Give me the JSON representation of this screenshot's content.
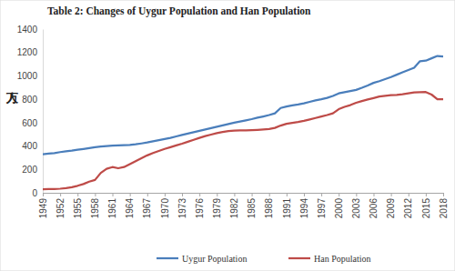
{
  "chart_data": {
    "type": "line",
    "title": "Table 2: Changes of Uygur Population and Han Population",
    "ylabel": "万人",
    "x": [
      1949,
      1950,
      1951,
      1952,
      1953,
      1954,
      1955,
      1956,
      1957,
      1958,
      1959,
      1960,
      1961,
      1962,
      1963,
      1964,
      1965,
      1966,
      1967,
      1968,
      1969,
      1970,
      1971,
      1972,
      1973,
      1974,
      1975,
      1976,
      1977,
      1978,
      1979,
      1980,
      1981,
      1982,
      1983,
      1984,
      1985,
      1986,
      1987,
      1988,
      1989,
      1990,
      1991,
      1992,
      1993,
      1994,
      1995,
      1996,
      1997,
      1998,
      1999,
      2000,
      2001,
      2002,
      2003,
      2004,
      2005,
      2006,
      2007,
      2008,
      2009,
      2010,
      2011,
      2012,
      2013,
      2014,
      2015,
      2016,
      2017,
      2018
    ],
    "series": [
      {
        "name": "Uygur Population",
        "color": "#4a7ebb",
        "values": [
          330,
          335,
          340,
          348,
          355,
          360,
          368,
          375,
          382,
          390,
          395,
          400,
          403,
          405,
          407,
          410,
          415,
          422,
          430,
          440,
          450,
          460,
          470,
          482,
          495,
          507,
          518,
          530,
          542,
          553,
          565,
          577,
          588,
          600,
          610,
          620,
          630,
          642,
          653,
          665,
          680,
          725,
          738,
          748,
          755,
          765,
          778,
          790,
          800,
          812,
          828,
          850,
          860,
          870,
          880,
          898,
          918,
          940,
          955,
          972,
          990,
          1010,
          1030,
          1050,
          1070,
          1125,
          1130,
          1150,
          1170,
          1165
        ]
      },
      {
        "name": "Han Population",
        "color": "#be4b48",
        "values": [
          30,
          32,
          33,
          35,
          40,
          48,
          60,
          75,
          95,
          110,
          170,
          205,
          220,
          210,
          220,
          245,
          270,
          295,
          320,
          340,
          358,
          375,
          390,
          405,
          420,
          437,
          453,
          470,
          485,
          498,
          510,
          520,
          528,
          532,
          533,
          534,
          536,
          538,
          541,
          545,
          555,
          575,
          590,
          598,
          605,
          615,
          627,
          640,
          652,
          665,
          680,
          715,
          735,
          750,
          770,
          785,
          798,
          810,
          823,
          830,
          835,
          838,
          843,
          850,
          858,
          860,
          862,
          840,
          800,
          800
        ]
      }
    ],
    "xlim": [
      1949,
      2018
    ],
    "xticks": [
      1949,
      1952,
      1955,
      1958,
      1961,
      1964,
      1967,
      1970,
      1973,
      1976,
      1979,
      1982,
      1985,
      1988,
      1991,
      1994,
      1997,
      2000,
      2003,
      2006,
      2009,
      2012,
      2015,
      2018
    ],
    "ylim": [
      0,
      1400
    ],
    "yticks": [
      0,
      200,
      400,
      600,
      800,
      1000,
      1200,
      1400
    ],
    "grid": false,
    "legend": "bottom"
  }
}
